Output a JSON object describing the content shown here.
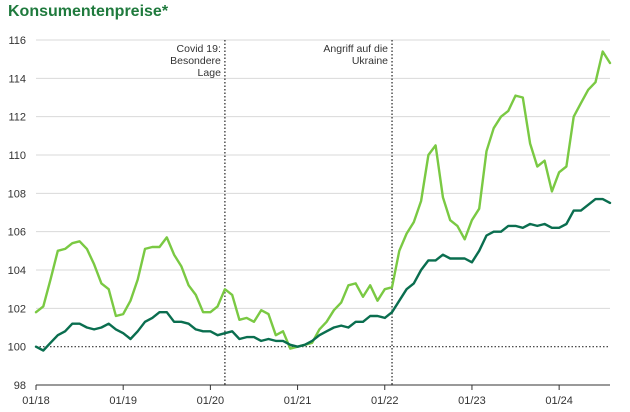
{
  "chart_data": {
    "type": "line",
    "title": "Konsumentenpreise*",
    "xlabel": "",
    "ylabel": "",
    "ylim": [
      98,
      116
    ],
    "yticks": [
      98,
      100,
      102,
      104,
      106,
      108,
      110,
      112,
      114,
      116
    ],
    "x_ticks": [
      "01/18",
      "01/19",
      "01/20",
      "01/21",
      "01/22",
      "01/23",
      "01/24"
    ],
    "x_start": "01/18",
    "grid": "horizontal",
    "reference_line": 100,
    "colors": {
      "light": "#7ac943",
      "dark": "#0a6e4f",
      "title": "#1f7a3d",
      "grid": "#d9d9d9",
      "axis": "#333333"
    },
    "annotations": [
      {
        "x": "03/20",
        "lines": [
          "Covid 19:",
          "Besondere",
          "Lage"
        ]
      },
      {
        "x": "02/22",
        "lines": [
          "Angriff auf die",
          "Ukraine"
        ]
      }
    ],
    "series": [
      {
        "name": "",
        "color": "#7ac943",
        "values": [
          101.8,
          102.1,
          103.5,
          105.0,
          105.1,
          105.4,
          105.5,
          105.1,
          104.3,
          103.3,
          103.0,
          101.6,
          101.7,
          102.4,
          103.5,
          105.1,
          105.2,
          105.2,
          105.7,
          104.8,
          104.2,
          103.2,
          102.7,
          101.8,
          101.8,
          102.1,
          103.0,
          102.7,
          101.4,
          101.5,
          101.3,
          101.9,
          101.7,
          100.6,
          100.8,
          99.9,
          100.0,
          100.1,
          100.2,
          100.9,
          101.3,
          101.9,
          102.3,
          103.2,
          103.3,
          102.6,
          103.2,
          102.4,
          103.0,
          103.1,
          105.0,
          105.9,
          106.5,
          107.6,
          110.0,
          110.5,
          107.8,
          106.6,
          106.3,
          105.6,
          106.6,
          107.2,
          110.2,
          111.4,
          112.0,
          112.3,
          113.1,
          113.0,
          110.6,
          109.4,
          109.7,
          108.1,
          109.1,
          109.4,
          112.0,
          112.7,
          113.4,
          113.8,
          115.4,
          114.8
        ]
      },
      {
        "name": "",
        "color": "#0a6e4f",
        "values": [
          100.0,
          99.8,
          100.2,
          100.6,
          100.8,
          101.2,
          101.2,
          101.0,
          100.9,
          101.0,
          101.2,
          100.9,
          100.7,
          100.4,
          100.8,
          101.3,
          101.5,
          101.8,
          101.8,
          101.3,
          101.3,
          101.2,
          100.9,
          100.8,
          100.8,
          100.6,
          100.7,
          100.8,
          100.4,
          100.5,
          100.5,
          100.3,
          100.4,
          100.3,
          100.3,
          100.1,
          100.0,
          100.1,
          100.3,
          100.6,
          100.8,
          101.0,
          101.1,
          101.0,
          101.3,
          101.3,
          101.6,
          101.6,
          101.5,
          101.8,
          102.4,
          103.0,
          103.3,
          104.0,
          104.5,
          104.5,
          104.8,
          104.6,
          104.6,
          104.6,
          104.4,
          105.0,
          105.8,
          106.0,
          106.0,
          106.3,
          106.3,
          106.2,
          106.4,
          106.3,
          106.4,
          106.2,
          106.2,
          106.4,
          107.1,
          107.1,
          107.4,
          107.7,
          107.7,
          107.5
        ]
      }
    ]
  }
}
